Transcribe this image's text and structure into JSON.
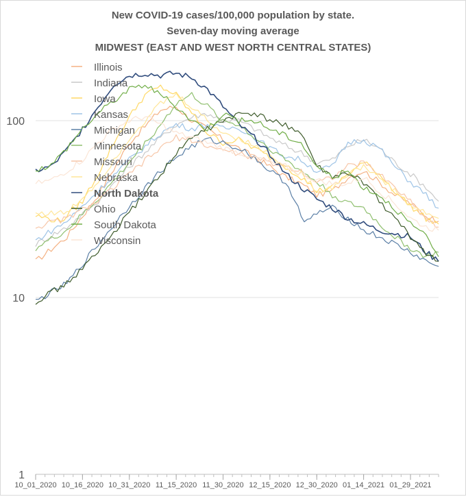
{
  "chart_data": {
    "type": "line",
    "title_lines": [
      "New COVID-19 cases/100,000 population by state.",
      "Seven-day moving average",
      "MIDWEST (EAST AND WEST NORTH CENTRAL STATES)"
    ],
    "y_scale": "log",
    "ylim": [
      1,
      200
    ],
    "y_ticks": [
      {
        "value": 1,
        "label": "1"
      },
      {
        "value": 10,
        "label": "10"
      },
      {
        "value": 100,
        "label": "100"
      }
    ],
    "x_range": [
      "10/01/2020",
      "02/07/2021"
    ],
    "x_ticks": [
      {
        "day": 0,
        "label": "10_01_2020"
      },
      {
        "day": 15,
        "label": "10_16_2020"
      },
      {
        "day": 30,
        "label": "10_31_2020"
      },
      {
        "day": 45,
        "label": "11_15_2020"
      },
      {
        "day": 60,
        "label": "11_30_2020"
      },
      {
        "day": 75,
        "label": "12_15_2020"
      },
      {
        "day": 90,
        "label": "12_30_2020"
      },
      {
        "day": 105,
        "label": "01_14_2021"
      },
      {
        "day": 120,
        "label": "01_29_2021"
      }
    ],
    "gridlines": "horizontal",
    "legend_position": "top-left",
    "series": [
      {
        "name": "Illinois",
        "color": "#f4b183",
        "bold": false,
        "points": [
          [
            0,
            16
          ],
          [
            10,
            22
          ],
          [
            20,
            38
          ],
          [
            30,
            75
          ],
          [
            40,
            115
          ],
          [
            45,
            120
          ],
          [
            50,
            100
          ],
          [
            55,
            90
          ],
          [
            60,
            78
          ],
          [
            65,
            70
          ],
          [
            70,
            62
          ],
          [
            75,
            55
          ],
          [
            80,
            48
          ],
          [
            85,
            44
          ],
          [
            90,
            38
          ],
          [
            95,
            40
          ],
          [
            100,
            48
          ],
          [
            105,
            52
          ],
          [
            110,
            45
          ],
          [
            115,
            38
          ],
          [
            120,
            34
          ],
          [
            125,
            29
          ],
          [
            129,
            27
          ]
        ]
      },
      {
        "name": "Indiana",
        "color": "#c9c9c9",
        "bold": false,
        "points": [
          [
            0,
            20
          ],
          [
            10,
            25
          ],
          [
            20,
            35
          ],
          [
            30,
            55
          ],
          [
            40,
            80
          ],
          [
            45,
            95
          ],
          [
            50,
            105
          ],
          [
            55,
            110
          ],
          [
            60,
            100
          ],
          [
            65,
            100
          ],
          [
            70,
            90
          ],
          [
            75,
            80
          ],
          [
            80,
            72
          ],
          [
            85,
            66
          ],
          [
            90,
            58
          ],
          [
            95,
            60
          ],
          [
            100,
            72
          ],
          [
            105,
            78
          ],
          [
            110,
            70
          ],
          [
            115,
            58
          ],
          [
            120,
            50
          ],
          [
            125,
            42
          ],
          [
            129,
            35
          ]
        ]
      },
      {
        "name": "Iowa",
        "color": "#ffd966",
        "bold": false,
        "points": [
          [
            0,
            29
          ],
          [
            8,
            27
          ],
          [
            15,
            35
          ],
          [
            20,
            50
          ],
          [
            25,
            75
          ],
          [
            30,
            105
          ],
          [
            35,
            140
          ],
          [
            40,
            155
          ],
          [
            45,
            140
          ],
          [
            50,
            110
          ],
          [
            55,
            85
          ],
          [
            60,
            75
          ],
          [
            65,
            78
          ],
          [
            70,
            70
          ],
          [
            75,
            62
          ],
          [
            80,
            55
          ],
          [
            85,
            48
          ],
          [
            90,
            40
          ],
          [
            95,
            42
          ],
          [
            100,
            50
          ],
          [
            105,
            58
          ],
          [
            110,
            50
          ],
          [
            115,
            40
          ],
          [
            120,
            33
          ],
          [
            125,
            28
          ],
          [
            129,
            26
          ]
        ]
      },
      {
        "name": "Kansas",
        "color": "#9dc3e6",
        "bold": false,
        "points": [
          [
            0,
            21
          ],
          [
            10,
            27
          ],
          [
            20,
            40
          ],
          [
            30,
            60
          ],
          [
            40,
            85
          ],
          [
            45,
            95
          ],
          [
            50,
            90
          ],
          [
            55,
            95
          ],
          [
            60,
            90
          ],
          [
            65,
            92
          ],
          [
            70,
            80
          ],
          [
            75,
            70
          ],
          [
            80,
            63
          ],
          [
            85,
            60
          ],
          [
            90,
            52
          ],
          [
            95,
            55
          ],
          [
            100,
            75
          ],
          [
            105,
            78
          ],
          [
            110,
            70
          ],
          [
            115,
            55
          ],
          [
            120,
            45
          ],
          [
            125,
            38
          ],
          [
            129,
            32
          ]
        ]
      },
      {
        "name": "Michigan",
        "color": "#5b7fa6",
        "bold": false,
        "points": [
          [
            0,
            9.5
          ],
          [
            10,
            12
          ],
          [
            20,
            20
          ],
          [
            30,
            33
          ],
          [
            40,
            52
          ],
          [
            45,
            62
          ],
          [
            50,
            72
          ],
          [
            55,
            78
          ],
          [
            60,
            75
          ],
          [
            65,
            70
          ],
          [
            70,
            62
          ],
          [
            75,
            52
          ],
          [
            80,
            45
          ],
          [
            83,
            36
          ],
          [
            86,
            26
          ],
          [
            90,
            30
          ],
          [
            95,
            32
          ],
          [
            100,
            28
          ],
          [
            105,
            24
          ],
          [
            110,
            22
          ],
          [
            115,
            20
          ],
          [
            120,
            18
          ],
          [
            125,
            16
          ],
          [
            129,
            15
          ]
        ]
      },
      {
        "name": "Minnesota",
        "color": "#8fbf6f",
        "bold": false,
        "points": [
          [
            0,
            19
          ],
          [
            10,
            24
          ],
          [
            20,
            36
          ],
          [
            30,
            58
          ],
          [
            40,
            95
          ],
          [
            45,
            125
          ],
          [
            50,
            140
          ],
          [
            55,
            120
          ],
          [
            60,
            100
          ],
          [
            65,
            95
          ],
          [
            70,
            80
          ],
          [
            75,
            70
          ],
          [
            80,
            60
          ],
          [
            85,
            52
          ],
          [
            90,
            45
          ],
          [
            95,
            38
          ],
          [
            100,
            34
          ],
          [
            105,
            32
          ],
          [
            110,
            26
          ],
          [
            115,
            22
          ],
          [
            120,
            19
          ],
          [
            125,
            17
          ],
          [
            129,
            18
          ]
        ]
      },
      {
        "name": "Missouri",
        "color": "#f7c6a8",
        "bold": false,
        "points": [
          [
            0,
            25
          ],
          [
            10,
            28
          ],
          [
            20,
            35
          ],
          [
            30,
            50
          ],
          [
            40,
            70
          ],
          [
            45,
            80
          ],
          [
            50,
            78
          ],
          [
            55,
            72
          ],
          [
            60,
            68
          ],
          [
            65,
            65
          ],
          [
            70,
            62
          ],
          [
            75,
            58
          ],
          [
            80,
            55
          ],
          [
            85,
            52
          ],
          [
            90,
            45
          ],
          [
            95,
            48
          ],
          [
            100,
            55
          ],
          [
            105,
            58
          ],
          [
            110,
            50
          ],
          [
            115,
            42
          ],
          [
            120,
            35
          ],
          [
            125,
            28
          ],
          [
            129,
            25
          ]
        ]
      },
      {
        "name": "Nebraska",
        "color": "#ffe699",
        "bold": false,
        "points": [
          [
            0,
            30
          ],
          [
            10,
            30
          ],
          [
            20,
            45
          ],
          [
            30,
            80
          ],
          [
            40,
            125
          ],
          [
            45,
            140
          ],
          [
            50,
            120
          ],
          [
            55,
            100
          ],
          [
            60,
            85
          ],
          [
            65,
            80
          ],
          [
            70,
            72
          ],
          [
            75,
            65
          ],
          [
            80,
            55
          ],
          [
            85,
            50
          ],
          [
            90,
            40
          ],
          [
            95,
            42
          ],
          [
            100,
            50
          ],
          [
            105,
            55
          ],
          [
            110,
            48
          ],
          [
            115,
            40
          ],
          [
            120,
            33
          ],
          [
            125,
            30
          ],
          [
            129,
            28
          ]
        ]
      },
      {
        "name": "North Dakota",
        "color": "#2f4b7c",
        "bold": true,
        "points": [
          [
            0,
            52
          ],
          [
            5,
            55
          ],
          [
            10,
            68
          ],
          [
            15,
            90
          ],
          [
            20,
            120
          ],
          [
            25,
            160
          ],
          [
            30,
            180
          ],
          [
            35,
            185
          ],
          [
            40,
            180
          ],
          [
            45,
            185
          ],
          [
            50,
            175
          ],
          [
            55,
            150
          ],
          [
            60,
            120
          ],
          [
            65,
            95
          ],
          [
            70,
            80
          ],
          [
            75,
            65
          ],
          [
            80,
            50
          ],
          [
            85,
            42
          ],
          [
            90,
            36
          ],
          [
            95,
            32
          ],
          [
            100,
            28
          ],
          [
            105,
            26
          ],
          [
            110,
            24
          ],
          [
            115,
            23
          ],
          [
            120,
            22
          ],
          [
            125,
            18
          ],
          [
            129,
            16
          ]
        ]
      },
      {
        "name": "Ohio",
        "color": "#3d5a2a",
        "bold": false,
        "points": [
          [
            0,
            9.5
          ],
          [
            10,
            12
          ],
          [
            20,
            18
          ],
          [
            30,
            30
          ],
          [
            40,
            50
          ],
          [
            45,
            65
          ],
          [
            50,
            80
          ],
          [
            55,
            90
          ],
          [
            60,
            100
          ],
          [
            65,
            108
          ],
          [
            70,
            110
          ],
          [
            72,
            105
          ],
          [
            75,
            100
          ],
          [
            80,
            95
          ],
          [
            85,
            85
          ],
          [
            90,
            55
          ],
          [
            95,
            48
          ],
          [
            100,
            50
          ],
          [
            105,
            45
          ],
          [
            110,
            35
          ],
          [
            115,
            28
          ],
          [
            120,
            22
          ],
          [
            125,
            18
          ],
          [
            129,
            16
          ]
        ]
      },
      {
        "name": "South Dakota",
        "color": "#70ad47",
        "bold": false,
        "points": [
          [
            0,
            53
          ],
          [
            5,
            56
          ],
          [
            10,
            70
          ],
          [
            15,
            90
          ],
          [
            20,
            110
          ],
          [
            25,
            130
          ],
          [
            30,
            150
          ],
          [
            35,
            160
          ],
          [
            40,
            140
          ],
          [
            45,
            120
          ],
          [
            50,
            100
          ],
          [
            55,
            90
          ],
          [
            60,
            110
          ],
          [
            65,
            100
          ],
          [
            70,
            100
          ],
          [
            75,
            90
          ],
          [
            80,
            82
          ],
          [
            85,
            75
          ],
          [
            90,
            55
          ],
          [
            95,
            48
          ],
          [
            100,
            52
          ],
          [
            105,
            42
          ],
          [
            110,
            38
          ],
          [
            115,
            32
          ],
          [
            120,
            26
          ],
          [
            125,
            22
          ],
          [
            129,
            17
          ]
        ]
      },
      {
        "name": "Wisconsin",
        "color": "#fbe5d6",
        "bold": false,
        "points": [
          [
            0,
            44
          ],
          [
            5,
            46
          ],
          [
            10,
            52
          ],
          [
            15,
            60
          ],
          [
            20,
            75
          ],
          [
            25,
            90
          ],
          [
            30,
            100
          ],
          [
            35,
            105
          ],
          [
            40,
            95
          ],
          [
            45,
            85
          ],
          [
            50,
            80
          ],
          [
            55,
            75
          ],
          [
            60,
            70
          ],
          [
            65,
            66
          ],
          [
            70,
            62
          ],
          [
            75,
            58
          ],
          [
            80,
            55
          ],
          [
            85,
            50
          ],
          [
            90,
            46
          ],
          [
            95,
            44
          ],
          [
            100,
            44
          ],
          [
            105,
            48
          ],
          [
            110,
            40
          ],
          [
            115,
            34
          ],
          [
            120,
            28
          ],
          [
            125,
            25
          ],
          [
            129,
            24
          ]
        ]
      }
    ]
  }
}
